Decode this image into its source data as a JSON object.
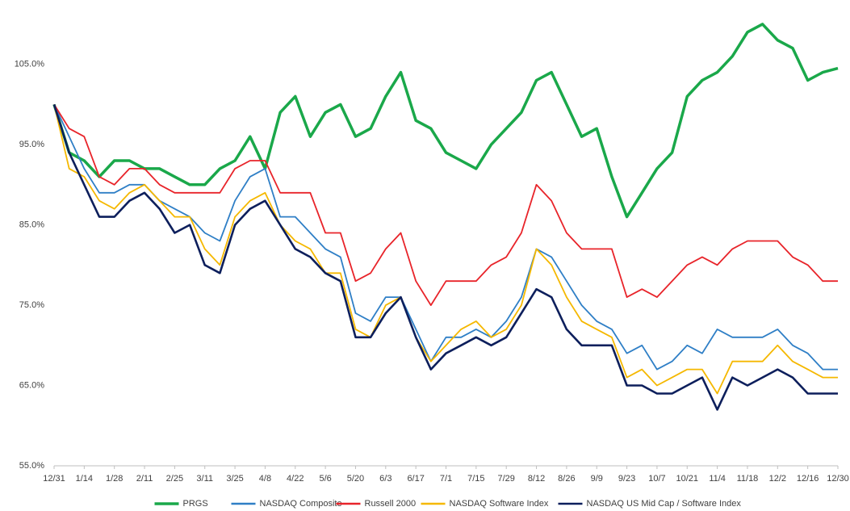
{
  "chart_data": {
    "type": "line",
    "categories": [
      "12/31",
      null,
      "1/14",
      null,
      "1/28",
      null,
      "2/11",
      null,
      "2/25",
      null,
      "3/11",
      null,
      "3/25",
      null,
      "4/8",
      null,
      "4/22",
      null,
      "5/6",
      null,
      "5/20",
      null,
      "6/3",
      null,
      "6/17",
      null,
      "7/1",
      null,
      "7/15",
      null,
      "7/29",
      null,
      "8/12",
      null,
      "8/26",
      null,
      "9/9",
      null,
      "9/23",
      null,
      "10/7",
      null,
      "10/21",
      null,
      "11/4",
      null,
      "11/18",
      null,
      "12/2",
      null,
      "12/16",
      null,
      "12/30"
    ],
    "series": [
      {
        "name": "PRGS",
        "color": "#1aa84a",
        "values": [
          100,
          94,
          93,
          91,
          93,
          93,
          92,
          92,
          91,
          90,
          90,
          92,
          93,
          96,
          92,
          99,
          101,
          96,
          99,
          100,
          96,
          97,
          101,
          104,
          98,
          97,
          94,
          93,
          92,
          95,
          97,
          99,
          103,
          104,
          100,
          96,
          97,
          91,
          86,
          89,
          92,
          94,
          101,
          103,
          104,
          106,
          109,
          110,
          108,
          107,
          103,
          104,
          104.5
        ]
      },
      {
        "name": "NASDAQ Composite",
        "color": "#2f7fc6",
        "values": [
          100,
          96,
          92,
          89,
          89,
          90,
          90,
          88,
          87,
          86,
          84,
          83,
          88,
          91,
          92,
          86,
          86,
          84,
          82,
          81,
          74,
          73,
          76,
          76,
          72,
          68,
          71,
          71,
          72,
          71,
          73,
          76,
          82,
          81,
          78,
          75,
          73,
          72,
          69,
          70,
          67,
          68,
          70,
          69,
          72,
          71,
          71,
          71,
          72,
          70,
          69,
          67,
          67
        ]
      },
      {
        "name": "Russell 2000",
        "color": "#e8242a",
        "values": [
          100,
          97,
          96,
          91,
          90,
          92,
          92,
          90,
          89,
          89,
          89,
          89,
          92,
          93,
          93,
          89,
          89,
          89,
          84,
          84,
          78,
          79,
          82,
          84,
          78,
          75,
          78,
          78,
          78,
          80,
          81,
          84,
          90,
          88,
          84,
          82,
          82,
          82,
          76,
          77,
          76,
          78,
          80,
          81,
          80,
          82,
          83,
          83,
          83,
          81,
          80,
          78,
          78
        ]
      },
      {
        "name": "NASDAQ Software Index",
        "color": "#f5b800",
        "values": [
          100,
          92,
          91,
          88,
          87,
          89,
          90,
          88,
          86,
          86,
          82,
          80,
          86,
          88,
          89,
          85,
          83,
          82,
          79,
          79,
          72,
          71,
          75,
          76,
          71,
          68,
          70,
          72,
          73,
          71,
          72,
          75,
          82,
          80,
          76,
          73,
          72,
          71,
          66,
          67,
          65,
          66,
          67,
          67,
          64,
          68,
          68,
          68,
          70,
          68,
          67,
          66,
          66
        ]
      },
      {
        "name": "NASDAQ US Mid Cap / Software Index",
        "color": "#0d1f5c",
        "values": [
          100,
          94,
          90,
          86,
          86,
          88,
          89,
          87,
          84,
          85,
          80,
          79,
          85,
          87,
          88,
          85,
          82,
          81,
          79,
          78,
          71,
          71,
          74,
          76,
          71,
          67,
          69,
          70,
          71,
          70,
          71,
          74,
          77,
          76,
          72,
          70,
          70,
          70,
          65,
          65,
          64,
          64,
          65,
          66,
          62,
          66,
          65,
          66,
          67,
          66,
          64,
          64,
          64
        ]
      }
    ],
    "ylim": [
      55,
      112
    ],
    "yticks": [
      {
        "value": 55,
        "label": "55.0%"
      },
      {
        "value": 65,
        "label": "65.0%"
      },
      {
        "value": 75,
        "label": "75.0%"
      },
      {
        "value": 85,
        "label": "85.0%"
      },
      {
        "value": 95,
        "label": "95.0%"
      },
      {
        "value": 105,
        "label": "105.0%"
      }
    ],
    "grid": false,
    "legend": "bottom"
  }
}
